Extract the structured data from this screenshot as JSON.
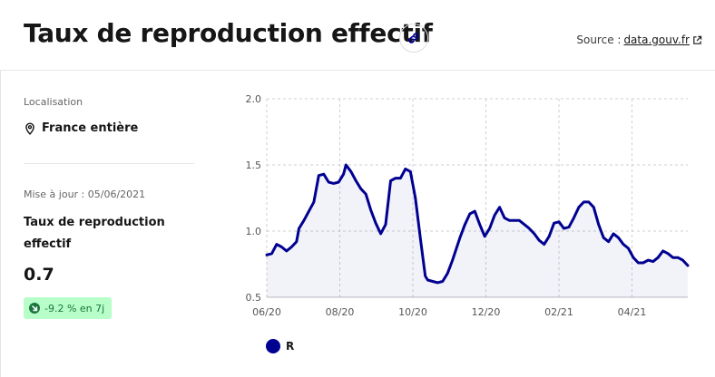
{
  "header": {
    "title": "Taux de reproduction effectif",
    "source_prefix": "Source :",
    "source_link": "data.gouv.fr"
  },
  "sidebar": {
    "location_label": "Localisation",
    "location_value": "France entière",
    "update_text": "Mise à jour : 05/06/2021",
    "metric_title": "Taux de reproduction effectif",
    "metric_value": "0.7",
    "trend_badge": "-9.2 % en 7j"
  },
  "colors": {
    "series": "#000091",
    "badge_bg": "#b8fec9",
    "badge_text": "#18753c"
  },
  "chart_data": {
    "type": "area",
    "title": "",
    "xlabel": "",
    "ylabel": "",
    "ylim": [
      0.5,
      2.0
    ],
    "y_ticks": [
      "0.5",
      "1.0",
      "1.5",
      "2.0"
    ],
    "x_ticks": [
      "06/20",
      "08/20",
      "10/20",
      "12/20",
      "02/21",
      "04/21"
    ],
    "grid": true,
    "legend": "bottom-left",
    "series": [
      {
        "name": "R",
        "color": "#000091",
        "x": [
          0,
          2,
          4,
          6,
          8,
          10,
          12,
          13,
          15,
          17,
          19,
          21,
          23,
          25,
          27,
          29,
          31,
          32,
          34,
          36,
          38,
          40,
          42,
          44,
          46,
          48,
          50,
          52,
          54,
          56,
          58,
          60,
          62,
          64,
          65,
          67,
          69,
          71,
          73,
          75,
          78,
          80,
          82,
          84,
          86,
          88,
          90,
          92,
          94,
          96,
          98,
          100,
          102,
          104,
          106,
          108,
          110,
          112,
          114,
          116,
          118,
          120,
          122,
          124,
          126,
          128,
          130,
          132,
          134,
          136,
          138,
          140,
          142,
          144,
          146,
          148,
          150,
          152,
          154,
          156,
          158,
          160,
          162,
          164,
          166,
          168,
          170
        ],
        "y": [
          0.82,
          0.83,
          0.9,
          0.88,
          0.85,
          0.88,
          0.92,
          1.02,
          1.08,
          1.15,
          1.22,
          1.42,
          1.43,
          1.37,
          1.36,
          1.37,
          1.43,
          1.5,
          1.45,
          1.38,
          1.32,
          1.28,
          1.16,
          1.06,
          0.98,
          1.05,
          1.38,
          1.4,
          1.4,
          1.47,
          1.45,
          1.25,
          0.95,
          0.66,
          0.63,
          0.62,
          0.61,
          0.62,
          0.68,
          0.78,
          0.95,
          1.05,
          1.13,
          1.15,
          1.05,
          0.96,
          1.02,
          1.12,
          1.18,
          1.1,
          1.08,
          1.08,
          1.08,
          1.05,
          1.02,
          0.98,
          0.93,
          0.9,
          0.96,
          1.06,
          1.07,
          1.02,
          1.03,
          1.1,
          1.18,
          1.22,
          1.22,
          1.18,
          1.05,
          0.95,
          0.92,
          0.98,
          0.95,
          0.9,
          0.87,
          0.8,
          0.76,
          0.76,
          0.78,
          0.77,
          0.8,
          0.85,
          0.83,
          0.8,
          0.8,
          0.78,
          0.74
        ]
      }
    ]
  }
}
